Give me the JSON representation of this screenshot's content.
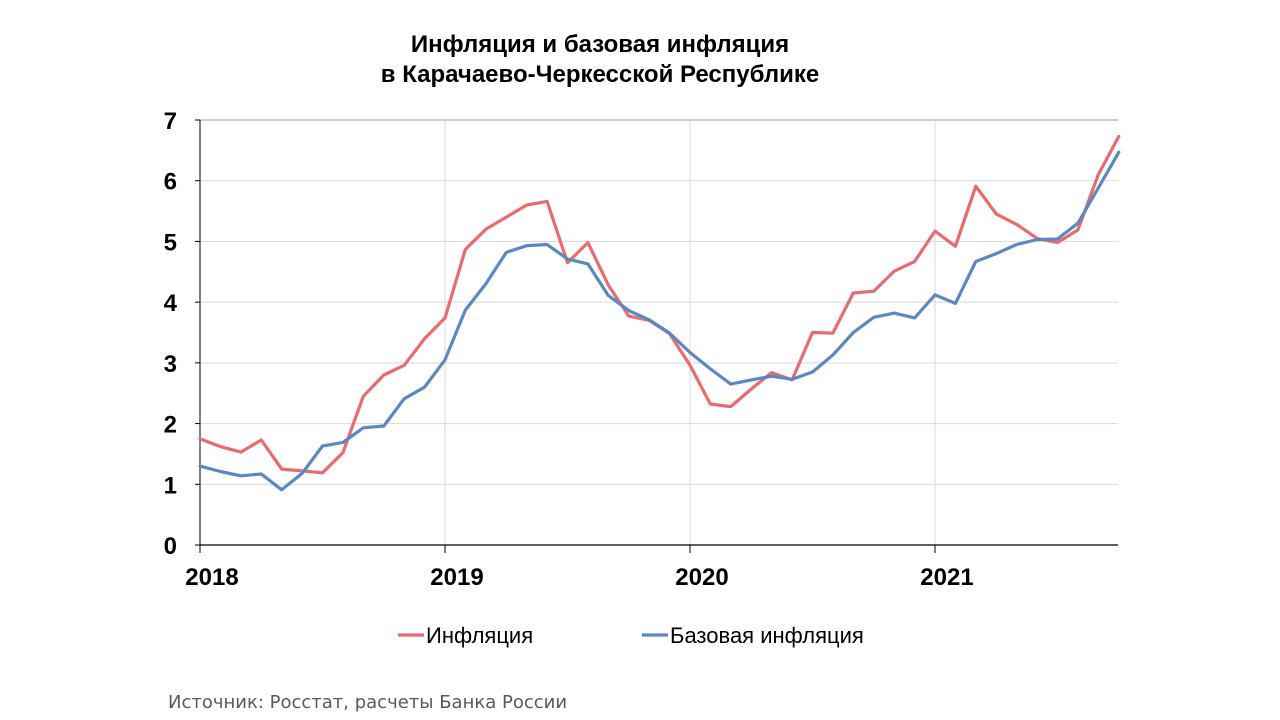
{
  "chart_data": {
    "type": "line",
    "title": [
      "Инфляция и базовая инфляция",
      "в Карачаево-Черкесской Республике"
    ],
    "xlabel": "",
    "ylabel": "",
    "ylim": [
      0,
      7
    ],
    "yticks": [
      "0",
      "1",
      "2",
      "3",
      "4",
      "5",
      "6",
      "7"
    ],
    "xticks": [
      "2018",
      "2019",
      "2020",
      "2021"
    ],
    "x_start": "2018-01",
    "x_step": "month",
    "grid": true,
    "legend_position": "bottom",
    "series": [
      {
        "name": "Инфляция",
        "color": "#e86b6f",
        "values": [
          1.75,
          1.62,
          1.53,
          1.73,
          1.25,
          1.22,
          1.19,
          1.52,
          2.45,
          2.8,
          2.96,
          3.4,
          3.74,
          4.87,
          5.2,
          5.4,
          5.6,
          5.66,
          4.65,
          4.98,
          4.28,
          3.77,
          3.7,
          3.48,
          2.96,
          2.32,
          2.28,
          2.57,
          2.84,
          2.72,
          3.5,
          3.49,
          4.15,
          4.18,
          4.51,
          4.67,
          5.17,
          4.92,
          5.91,
          5.45,
          5.28,
          5.05,
          4.98,
          5.19,
          6.1,
          6.73
        ]
      },
      {
        "name": "Базовая инфляция",
        "color": "#5b88c0",
        "values": [
          1.3,
          1.21,
          1.14,
          1.17,
          0.91,
          1.18,
          1.63,
          1.69,
          1.93,
          1.96,
          2.41,
          2.6,
          3.05,
          3.87,
          4.3,
          4.82,
          4.93,
          4.95,
          4.71,
          4.63,
          4.11,
          3.86,
          3.71,
          3.49,
          3.17,
          2.9,
          2.65,
          2.72,
          2.78,
          2.73,
          2.85,
          3.13,
          3.5,
          3.75,
          3.82,
          3.74,
          4.12,
          3.98,
          4.67,
          4.8,
          4.95,
          5.03,
          5.04,
          5.3,
          5.88,
          6.47
        ]
      }
    ]
  },
  "source_note": "Источник: Росстат, расчеты Банка России"
}
